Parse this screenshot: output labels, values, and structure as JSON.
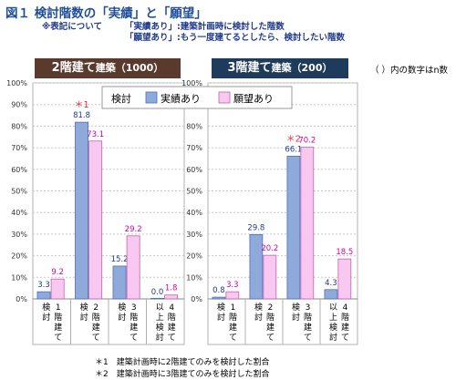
{
  "title": "図１ 検討階数の「実績」と「願望」",
  "notes": {
    "heading": "※表記について",
    "line1": "「実績あり」:建築計画時に検討した階数",
    "line2": "「願望あり」:もう一度建てるとしたら、検討したい階数"
  },
  "n_note": "（ ）内の数字はn数",
  "colors": {
    "actual": "#8eaadb",
    "wish": "#f9c8f0",
    "actual_stroke": "#4f6fb8",
    "wish_stroke": "#c060b0",
    "label_actual": "#1f3a8a",
    "label_wish": "#cc00aa",
    "star": "#e0303a",
    "header_left": "#5a3a2c",
    "header_right": "#1f3b5c"
  },
  "footnotes": [
    "＊1　建築計画時に2階建てのみを検討した割合",
    "＊2　建築計画時に3階建てのみを検討した割合"
  ],
  "chart_data": [
    {
      "type": "bar",
      "title": "2階建て",
      "subtitle": "建築（1000）",
      "categories": [
        "1階建て検討",
        "2階建て検討",
        "3階建て検討",
        "4階建て以上検討"
      ],
      "series": [
        {
          "name": "実績あり",
          "values": [
            3.3,
            81.8,
            15.2,
            0.0
          ]
        },
        {
          "name": "願望あり",
          "values": [
            9.2,
            73.1,
            29.2,
            1.8
          ]
        }
      ],
      "annotations": [
        {
          "text": "＊1",
          "category": "2階建て検討"
        }
      ],
      "legend": {
        "title": "検討",
        "placement": "top-right"
      },
      "yticks": [
        "0%",
        "10%",
        "20%",
        "30%",
        "40%",
        "50%",
        "60%",
        "70%",
        "80%",
        "90%",
        "100%"
      ],
      "ylim": [
        0,
        100
      ]
    },
    {
      "type": "bar",
      "title": "3階建て",
      "subtitle": "建築（200）",
      "categories": [
        "1階建て検討",
        "2階建て検討",
        "3階建て検討",
        "4階建て以上検討"
      ],
      "series": [
        {
          "name": "実績あり",
          "values": [
            0.8,
            29.8,
            66.1,
            4.3
          ]
        },
        {
          "name": "願望あり",
          "values": [
            3.3,
            20.2,
            70.2,
            18.5
          ]
        }
      ],
      "annotations": [
        {
          "text": "＊2",
          "category": "3階建て検討"
        }
      ],
      "yticks": [
        "0%",
        "10%",
        "20%",
        "30%",
        "40%",
        "50%",
        "60%",
        "70%",
        "80%",
        "90%",
        "100%"
      ],
      "ylim": [
        0,
        100
      ]
    }
  ],
  "category_labels": [
    [
      "検討",
      "1階建て"
    ],
    [
      "検討",
      "2階建て"
    ],
    [
      "検討",
      "3階建て"
    ],
    [
      "以上検討",
      "4階建て"
    ]
  ]
}
